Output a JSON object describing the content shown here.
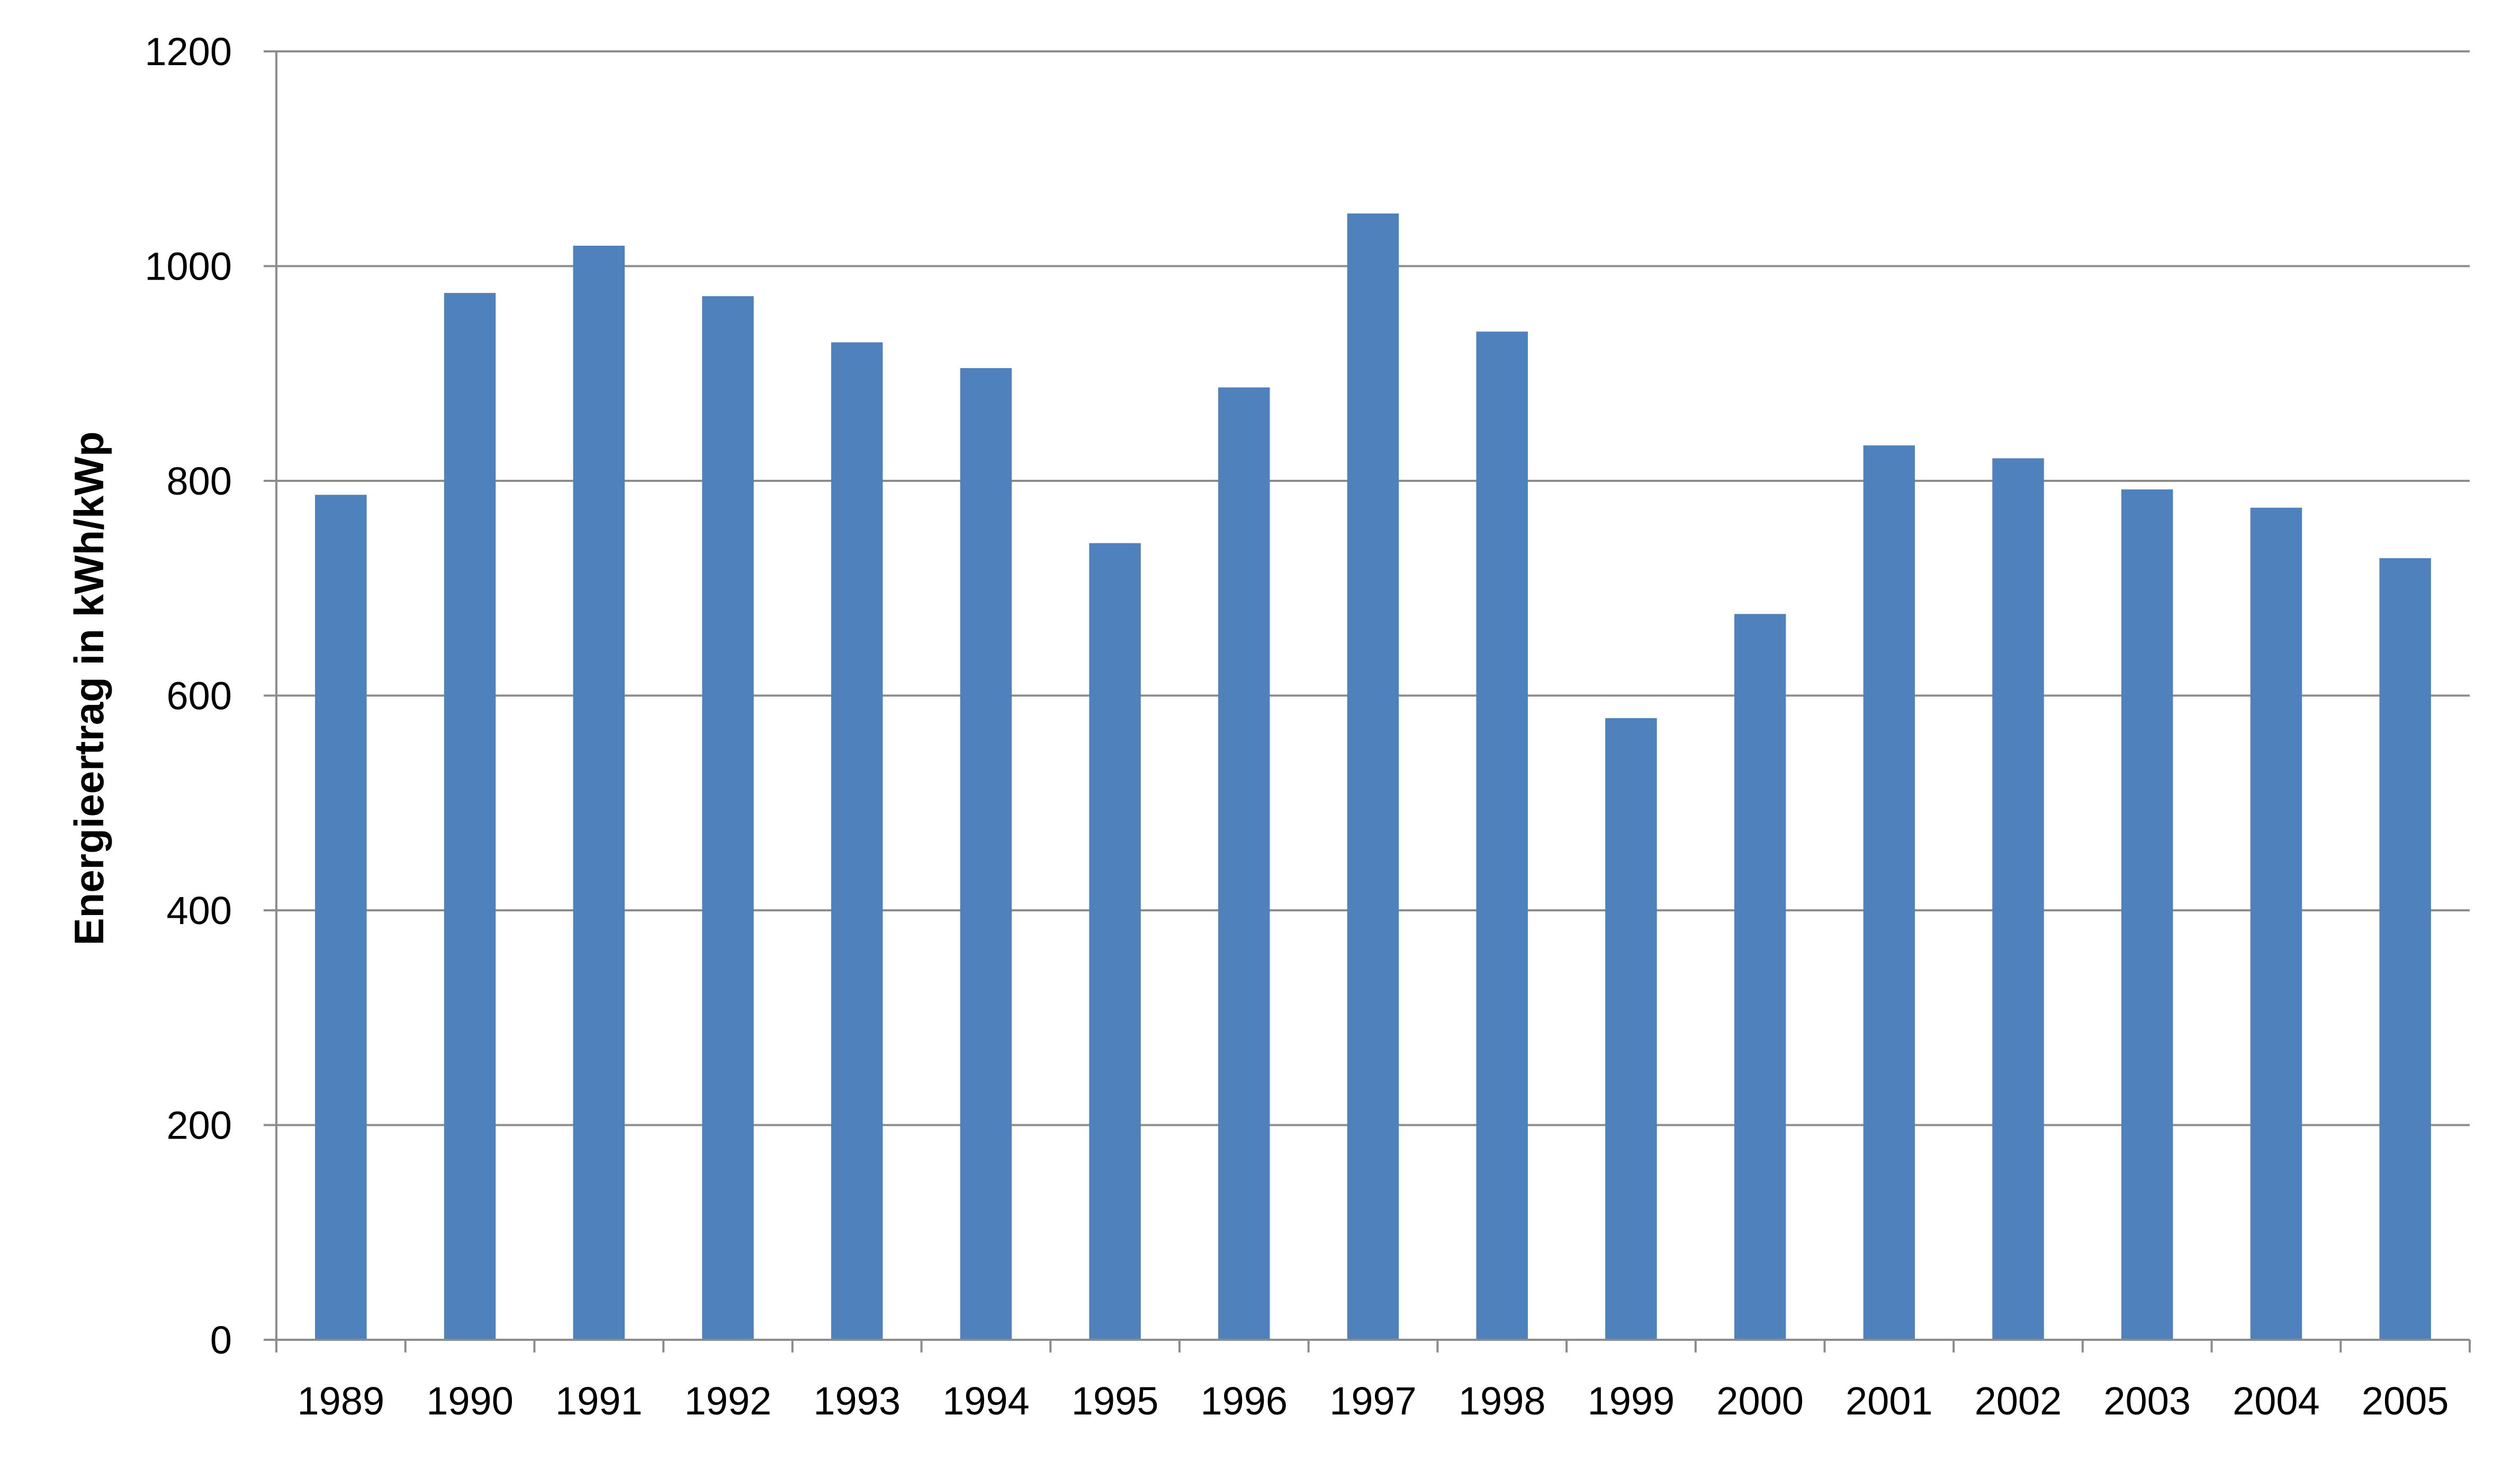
{
  "chart_data": {
    "type": "bar",
    "title": "",
    "xlabel": "",
    "ylabel": "Energieertrag in kWh/kWp",
    "categories": [
      "1989",
      "1990",
      "1991",
      "1992",
      "1993",
      "1994",
      "1995",
      "1996",
      "1997",
      "1998",
      "1999",
      "2000",
      "2001",
      "2002",
      "2003",
      "2004",
      "2005"
    ],
    "values": [
      787,
      975,
      1019,
      972,
      929,
      905,
      742,
      887,
      1049,
      939,
      579,
      676,
      833,
      821,
      792,
      775,
      728
    ],
    "ylim": [
      0,
      1200
    ],
    "yticks": [
      "0",
      "200",
      "400",
      "600",
      "800",
      "1000",
      "1200"
    ],
    "grid": true,
    "legend": "none",
    "bar_color": "#4f81bd",
    "grid_color": "#8c8c8c"
  }
}
